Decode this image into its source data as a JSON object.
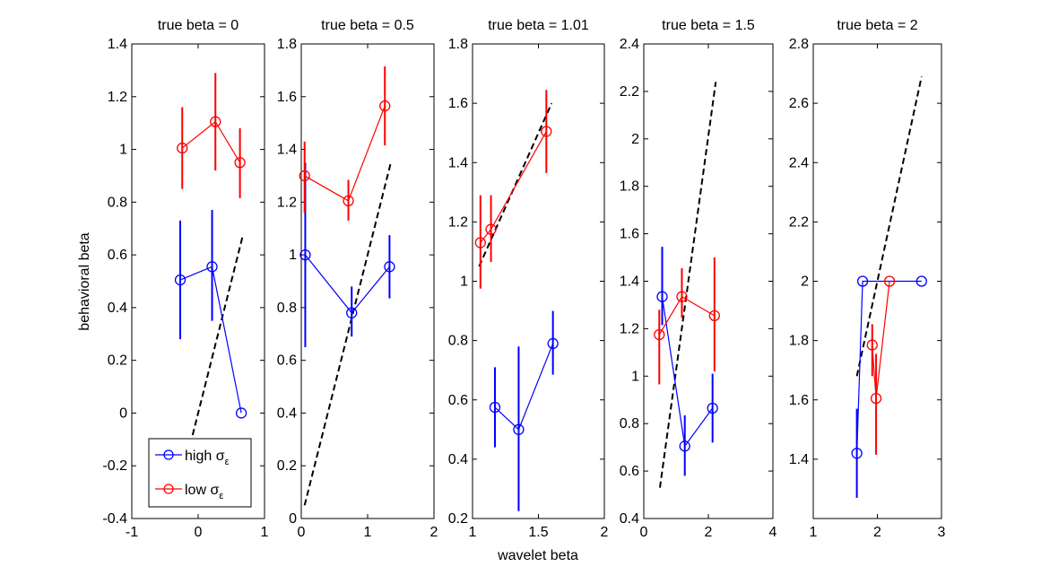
{
  "figure": {
    "xlabel": "wavelet beta",
    "ylabel": "behavioral beta"
  },
  "legend": {
    "placement": "bottom-left of first panel",
    "entries": [
      {
        "label": "high σ",
        "sub": "ε",
        "color": "#0000ff"
      },
      {
        "label": "low σ",
        "sub": "ε",
        "color": "#ff0000"
      }
    ]
  },
  "colors": {
    "high": "#0000ff",
    "low": "#ff0000",
    "identity": "#000000"
  },
  "chart_data": [
    {
      "type": "line",
      "title": "true beta = 0",
      "xlim": [
        -1,
        1
      ],
      "ylim": [
        -0.4,
        1.4
      ],
      "xticks": [
        -1,
        0,
        1
      ],
      "xtick_labels": [
        "-1",
        "0",
        "1"
      ],
      "yticks": [
        -0.4,
        -0.2,
        0,
        0.2,
        0.4,
        0.6,
        0.8,
        1,
        1.2,
        1.4
      ],
      "ytick_labels": [
        "-0.4",
        "-0.2",
        "0",
        "0.2",
        "0.4",
        "0.6",
        "0.8",
        "1",
        "1.2",
        "1.4"
      ],
      "identity": [
        [
          -0.12,
          -0.12
        ],
        [
          0.67,
          0.67
        ]
      ],
      "series": [
        {
          "name": "high σε",
          "color": "#0000ff",
          "x": [
            -0.27,
            0.21,
            0.65
          ],
          "y": [
            0.505,
            0.555,
            0.0
          ],
          "err_low": [
            0.28,
            0.35,
            0.0
          ],
          "err_high": [
            0.73,
            0.77,
            0.0
          ]
        },
        {
          "name": "low σε",
          "color": "#ff0000",
          "x": [
            -0.24,
            0.26,
            0.63
          ],
          "y": [
            1.005,
            1.105,
            0.95
          ],
          "err_low": [
            0.85,
            0.92,
            0.815
          ],
          "err_high": [
            1.16,
            1.29,
            1.08
          ]
        }
      ]
    },
    {
      "type": "line",
      "title": "true beta = 0.5",
      "xlim": [
        0,
        2
      ],
      "ylim": [
        0,
        1.8
      ],
      "xticks": [
        0,
        1,
        2
      ],
      "xtick_labels": [
        "0",
        "1",
        "2"
      ],
      "yticks": [
        0,
        0.2,
        0.4,
        0.6,
        0.8,
        1,
        1.2,
        1.4,
        1.6,
        1.8
      ],
      "ytick_labels": [
        "0",
        "0.2",
        "0.4",
        "0.6",
        "0.8",
        "1",
        "1.2",
        "1.4",
        "1.6",
        "1.8"
      ],
      "identity": [
        [
          0.05,
          0.05
        ],
        [
          1.35,
          1.35
        ]
      ],
      "series": [
        {
          "name": "high σε",
          "color": "#0000ff",
          "x": [
            0.06,
            0.76,
            1.33
          ],
          "y": [
            1.0,
            0.78,
            0.955
          ],
          "err_low": [
            0.65,
            0.69,
            0.835
          ],
          "err_high": [
            1.35,
            0.88,
            1.075
          ]
        },
        {
          "name": "low σε",
          "color": "#ff0000",
          "x": [
            0.05,
            0.71,
            1.26
          ],
          "y": [
            1.3,
            1.205,
            1.565
          ],
          "err_low": [
            1.16,
            1.13,
            1.415
          ],
          "err_high": [
            1.43,
            1.285,
            1.715
          ]
        }
      ]
    },
    {
      "type": "line",
      "title": "true beta = 1.01",
      "xlim": [
        1,
        2
      ],
      "ylim": [
        0.2,
        1.8
      ],
      "xticks": [
        1,
        1.5,
        2
      ],
      "xtick_labels": [
        "1",
        "1.5",
        "2"
      ],
      "yticks": [
        0.2,
        0.4,
        0.6,
        0.8,
        1,
        1.2,
        1.4,
        1.6,
        1.8
      ],
      "ytick_labels": [
        "0.2",
        "0.4",
        "0.6",
        "0.8",
        "1",
        "1.2",
        "1.4",
        "1.6",
        "1.8"
      ],
      "identity": [
        [
          1.05,
          1.05
        ],
        [
          1.6,
          1.6
        ]
      ],
      "series": [
        {
          "name": "high σε",
          "color": "#0000ff",
          "x": [
            1.17,
            1.35,
            1.61
          ],
          "y": [
            0.575,
            0.5,
            0.79
          ],
          "err_low": [
            0.44,
            0.225,
            0.685
          ],
          "err_high": [
            0.71,
            0.78,
            0.9
          ]
        },
        {
          "name": "low σε",
          "color": "#ff0000",
          "x": [
            1.06,
            1.14,
            1.56
          ],
          "y": [
            1.13,
            1.175,
            1.505
          ],
          "err_low": [
            0.975,
            1.065,
            1.365
          ],
          "err_high": [
            1.29,
            1.29,
            1.645
          ]
        }
      ]
    },
    {
      "type": "line",
      "title": "true beta = 1.5",
      "xlim": [
        0,
        4
      ],
      "ylim": [
        0.4,
        2.4
      ],
      "xticks": [
        0,
        2,
        4
      ],
      "xtick_labels": [
        "0",
        "2",
        "4"
      ],
      "yticks": [
        0.4,
        0.6,
        0.8,
        1,
        1.2,
        1.4,
        1.6,
        1.8,
        2,
        2.2,
        2.4
      ],
      "ytick_labels": [
        "0.4",
        "0.6",
        "0.8",
        "1",
        "1.2",
        "1.4",
        "1.6",
        "1.8",
        "2",
        "2.2",
        "2.4"
      ],
      "identity": [
        [
          0.5,
          0.53
        ],
        [
          2.23,
          2.24
        ]
      ],
      "series": [
        {
          "name": "high σε",
          "color": "#0000ff",
          "x": [
            0.57,
            1.27,
            2.13
          ],
          "y": [
            1.335,
            0.705,
            0.865
          ],
          "err_low": [
            1.215,
            0.58,
            0.72
          ],
          "err_high": [
            1.545,
            0.835,
            1.01
          ]
        },
        {
          "name": "low σε",
          "color": "#ff0000",
          "x": [
            0.48,
            1.18,
            2.19
          ],
          "y": [
            1.175,
            1.335,
            1.255
          ],
          "err_low": [
            0.965,
            1.245,
            1.02
          ],
          "err_high": [
            1.28,
            1.455,
            1.5
          ]
        }
      ]
    },
    {
      "type": "line",
      "title": "true beta = 2",
      "xlim": [
        1,
        3
      ],
      "ylim": [
        1.2,
        2.8
      ],
      "xticks": [
        1,
        2,
        3
      ],
      "xtick_labels": [
        "1",
        "2",
        "3"
      ],
      "yticks": [
        1.2,
        1.4,
        1.6,
        1.8,
        2,
        2.2,
        2.4,
        2.6,
        2.8
      ],
      "ytick_labels": [
        "",
        "1.4",
        "1.6",
        "1.8",
        "2",
        "2.2",
        "2.4",
        "2.6",
        "2.8"
      ],
      "identity": [
        [
          1.68,
          1.68
        ],
        [
          2.69,
          2.69
        ]
      ],
      "series": [
        {
          "name": "high σε",
          "color": "#0000ff",
          "x": [
            1.68,
            1.77,
            2.69
          ],
          "y": [
            1.42,
            2.0,
            2.0
          ],
          "err_low": [
            1.27,
            2.0,
            2.0
          ],
          "err_high": [
            1.57,
            2.0,
            2.0
          ]
        },
        {
          "name": "low σε",
          "color": "#ff0000",
          "x": [
            1.92,
            1.98,
            2.19
          ],
          "y": [
            1.785,
            1.605,
            2.0
          ],
          "err_low": [
            1.68,
            1.415,
            2.0
          ],
          "err_high": [
            1.855,
            1.755,
            2.0
          ]
        }
      ]
    }
  ]
}
